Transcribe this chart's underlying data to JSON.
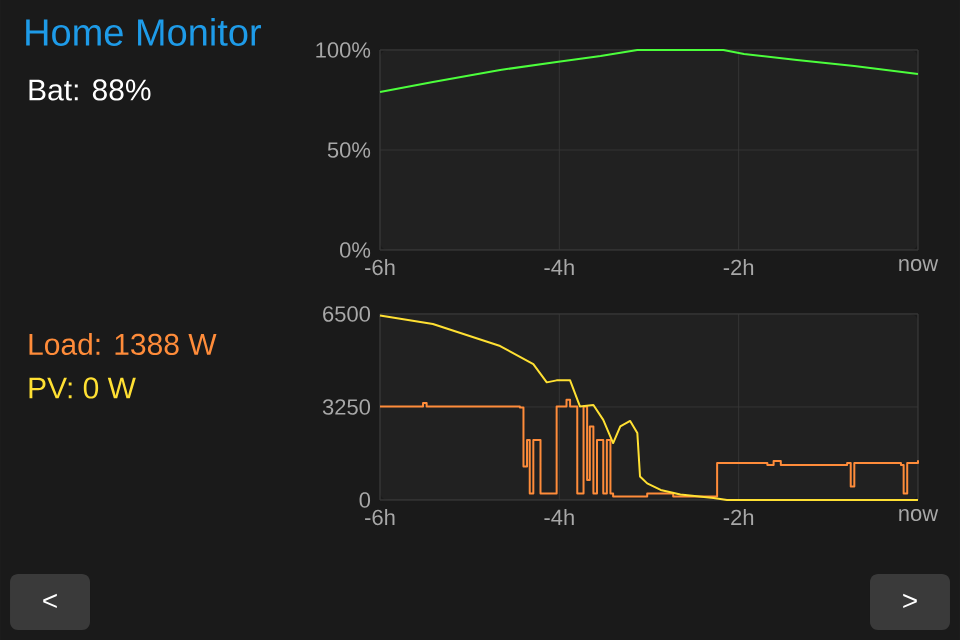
{
  "chart_data": [
    {
      "type": "line",
      "title": "Home Monitor",
      "annotations": [
        "Bat: 88%"
      ],
      "x": [
        -6,
        -5.41,
        -4.66,
        -4.03,
        -3.54,
        -3.13,
        -2.17,
        -1.94,
        -1.35,
        -0.71,
        0
      ],
      "series": [
        {
          "color": "#4cff3c",
          "values": [
            79,
            84,
            90,
            94,
            97,
            100,
            100,
            98,
            95,
            92,
            88
          ]
        }
      ],
      "xlim": [
        -6,
        0
      ],
      "ylim": [
        0,
        100
      ],
      "xticks": [
        {
          "value": -6,
          "label": "-6h"
        },
        {
          "value": -4,
          "label": "-4h"
        },
        {
          "value": -2,
          "label": "-2h"
        },
        {
          "value": 0,
          "label": "now"
        }
      ],
      "yticks": [
        {
          "value": 0,
          "label": "0%"
        },
        {
          "value": 50,
          "label": "50%"
        },
        {
          "value": 100,
          "label": "100%"
        }
      ],
      "grid": true
    },
    {
      "type": "line",
      "annotations": [
        "<",
        ">"
      ],
      "series": [
        {
          "name": "Load: 1388 W",
          "color": "#ff8c3a",
          "type": "step",
          "x": [
            -6,
            -5.55,
            -5.52,
            -5.48,
            -4.81,
            -4.44,
            -4.4,
            -4.36,
            -4.33,
            -4.29,
            -4.21,
            -4.07,
            -4.03,
            -3.95,
            -3.92,
            -3.88,
            -3.84,
            -3.8,
            -3.73,
            -3.69,
            -3.66,
            -3.62,
            -3.58,
            -3.51,
            -3.47,
            -3.43,
            -3.4,
            -3.17,
            -3.02,
            -2.73,
            -2.35,
            -2.28,
            -2.24,
            -1.68,
            -1.61,
            -1.53,
            -0.79,
            -0.75,
            -0.71,
            -0.19,
            -0.16,
            -0.12,
            0
          ],
          "values": [
            3270,
            3270,
            3390,
            3270,
            3270,
            3230,
            1170,
            2100,
            230,
            2100,
            230,
            230,
            3270,
            3270,
            3500,
            3270,
            3270,
            230,
            3270,
            700,
            2570,
            230,
            2100,
            230,
            2100,
            230,
            120,
            120,
            230,
            120,
            120,
            120,
            1290,
            1220,
            1360,
            1220,
            1290,
            470,
            1290,
            1220,
            230,
            1290,
            1390
          ]
        },
        {
          "name": "PV: 0 W",
          "color": "#ffe033",
          "type": "line",
          "x": [
            -6,
            -5.41,
            -4.66,
            -4.29,
            -4.14,
            -4.03,
            -3.88,
            -3.77,
            -3.62,
            -3.51,
            -3.4,
            -3.32,
            -3.21,
            -3.13,
            -3.1,
            -3.02,
            -2.87,
            -2.65,
            -2.28,
            -2.13,
            0
          ],
          "values": [
            6450,
            6150,
            5380,
            4750,
            4110,
            4180,
            4180,
            3270,
            3320,
            2800,
            1990,
            2570,
            2760,
            2340,
            820,
            580,
            350,
            190,
            70,
            0,
            0
          ]
        }
      ],
      "xlim": [
        -6,
        0
      ],
      "ylim": [
        0,
        6500
      ],
      "xticks": [
        {
          "value": -6,
          "label": "-6h"
        },
        {
          "value": -4,
          "label": "-4h"
        },
        {
          "value": -2,
          "label": "-2h"
        },
        {
          "value": 0,
          "label": "now"
        }
      ],
      "yticks": [
        0,
        3250,
        6500
      ],
      "grid": true
    }
  ]
}
